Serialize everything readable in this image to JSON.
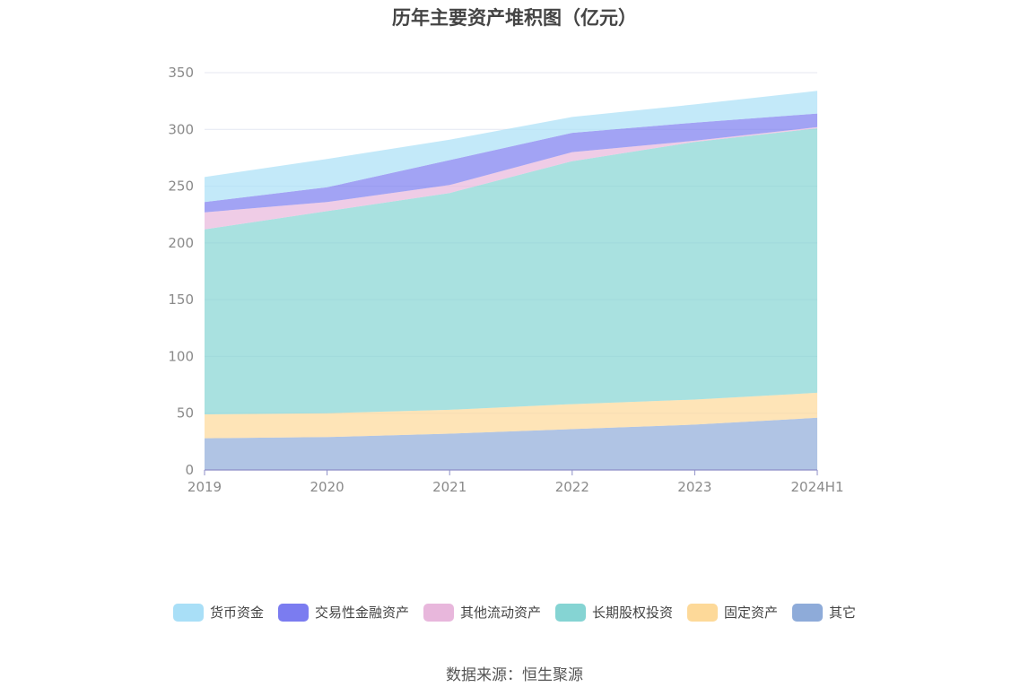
{
  "chart_data": {
    "type": "area",
    "stacked": true,
    "title": "历年主要资产堆积图（亿元）",
    "categories": [
      "2019",
      "2020",
      "2021",
      "2022",
      "2023",
      "2024H1"
    ],
    "yticks": [
      "0",
      "50",
      "100",
      "150",
      "200",
      "250",
      "300",
      "350"
    ],
    "ylim": [
      0,
      350
    ],
    "grid": true,
    "legend_position": "bottom",
    "series": [
      {
        "name": "其它",
        "color": "#8eabd9",
        "values": [
          28,
          29,
          32,
          36,
          40,
          46
        ]
      },
      {
        "name": "固定资产",
        "color": "#fdd999",
        "values": [
          21,
          21,
          21,
          22,
          22,
          22
        ]
      },
      {
        "name": "长期股权投资",
        "color": "#85d4d3",
        "values": [
          163,
          178,
          191,
          214,
          227,
          233
        ]
      },
      {
        "name": "其他流动资产",
        "color": "#e8b7dc",
        "values": [
          15,
          8,
          7,
          8,
          1,
          1
        ]
      },
      {
        "name": "交易性金融资产",
        "color": "#7b7cf0",
        "values": [
          9,
          13,
          22,
          17,
          16,
          12
        ]
      },
      {
        "name": "货币资金",
        "color": "#a9dff7",
        "values": [
          22,
          25,
          18,
          14,
          16,
          20
        ]
      }
    ],
    "legend_order": [
      "货币资金",
      "交易性金融资产",
      "其他流动资产",
      "长期股权投资",
      "固定资产",
      "其它"
    ]
  },
  "source": "数据来源：恒生聚源"
}
